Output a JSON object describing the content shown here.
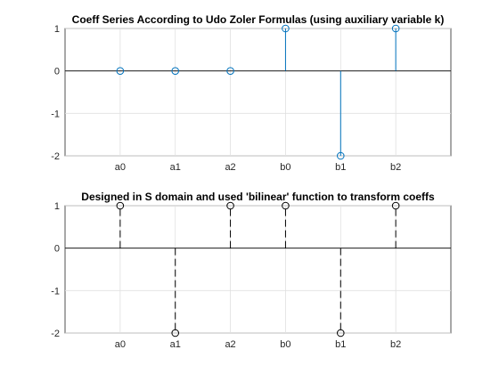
{
  "chart_data": [
    {
      "type": "stem",
      "title": "Coeff Series According to Udo Zoler Formulas (using auxiliary variable k)",
      "categories": [
        "a0",
        "a1",
        "a2",
        "b0",
        "b1",
        "b2"
      ],
      "values": [
        0,
        0,
        0,
        1,
        -2,
        1
      ],
      "ylim": [
        -2,
        1
      ],
      "yticks": [
        1,
        0,
        -1,
        -2
      ],
      "grid": true,
      "line_style": "solid",
      "marker": "circle",
      "color": "#0072BD"
    },
    {
      "type": "stem",
      "title": "Designed in S domain and used 'bilinear' function to transform coeffs",
      "categories": [
        "a0",
        "a1",
        "a2",
        "b0",
        "b1",
        "b2"
      ],
      "values": [
        1,
        -2,
        1,
        1,
        -2,
        1
      ],
      "ylim": [
        -2,
        1
      ],
      "yticks": [
        1,
        0,
        -1,
        -2
      ],
      "grid": true,
      "line_style": "dashed",
      "marker": "circle",
      "color": "#000000"
    }
  ]
}
